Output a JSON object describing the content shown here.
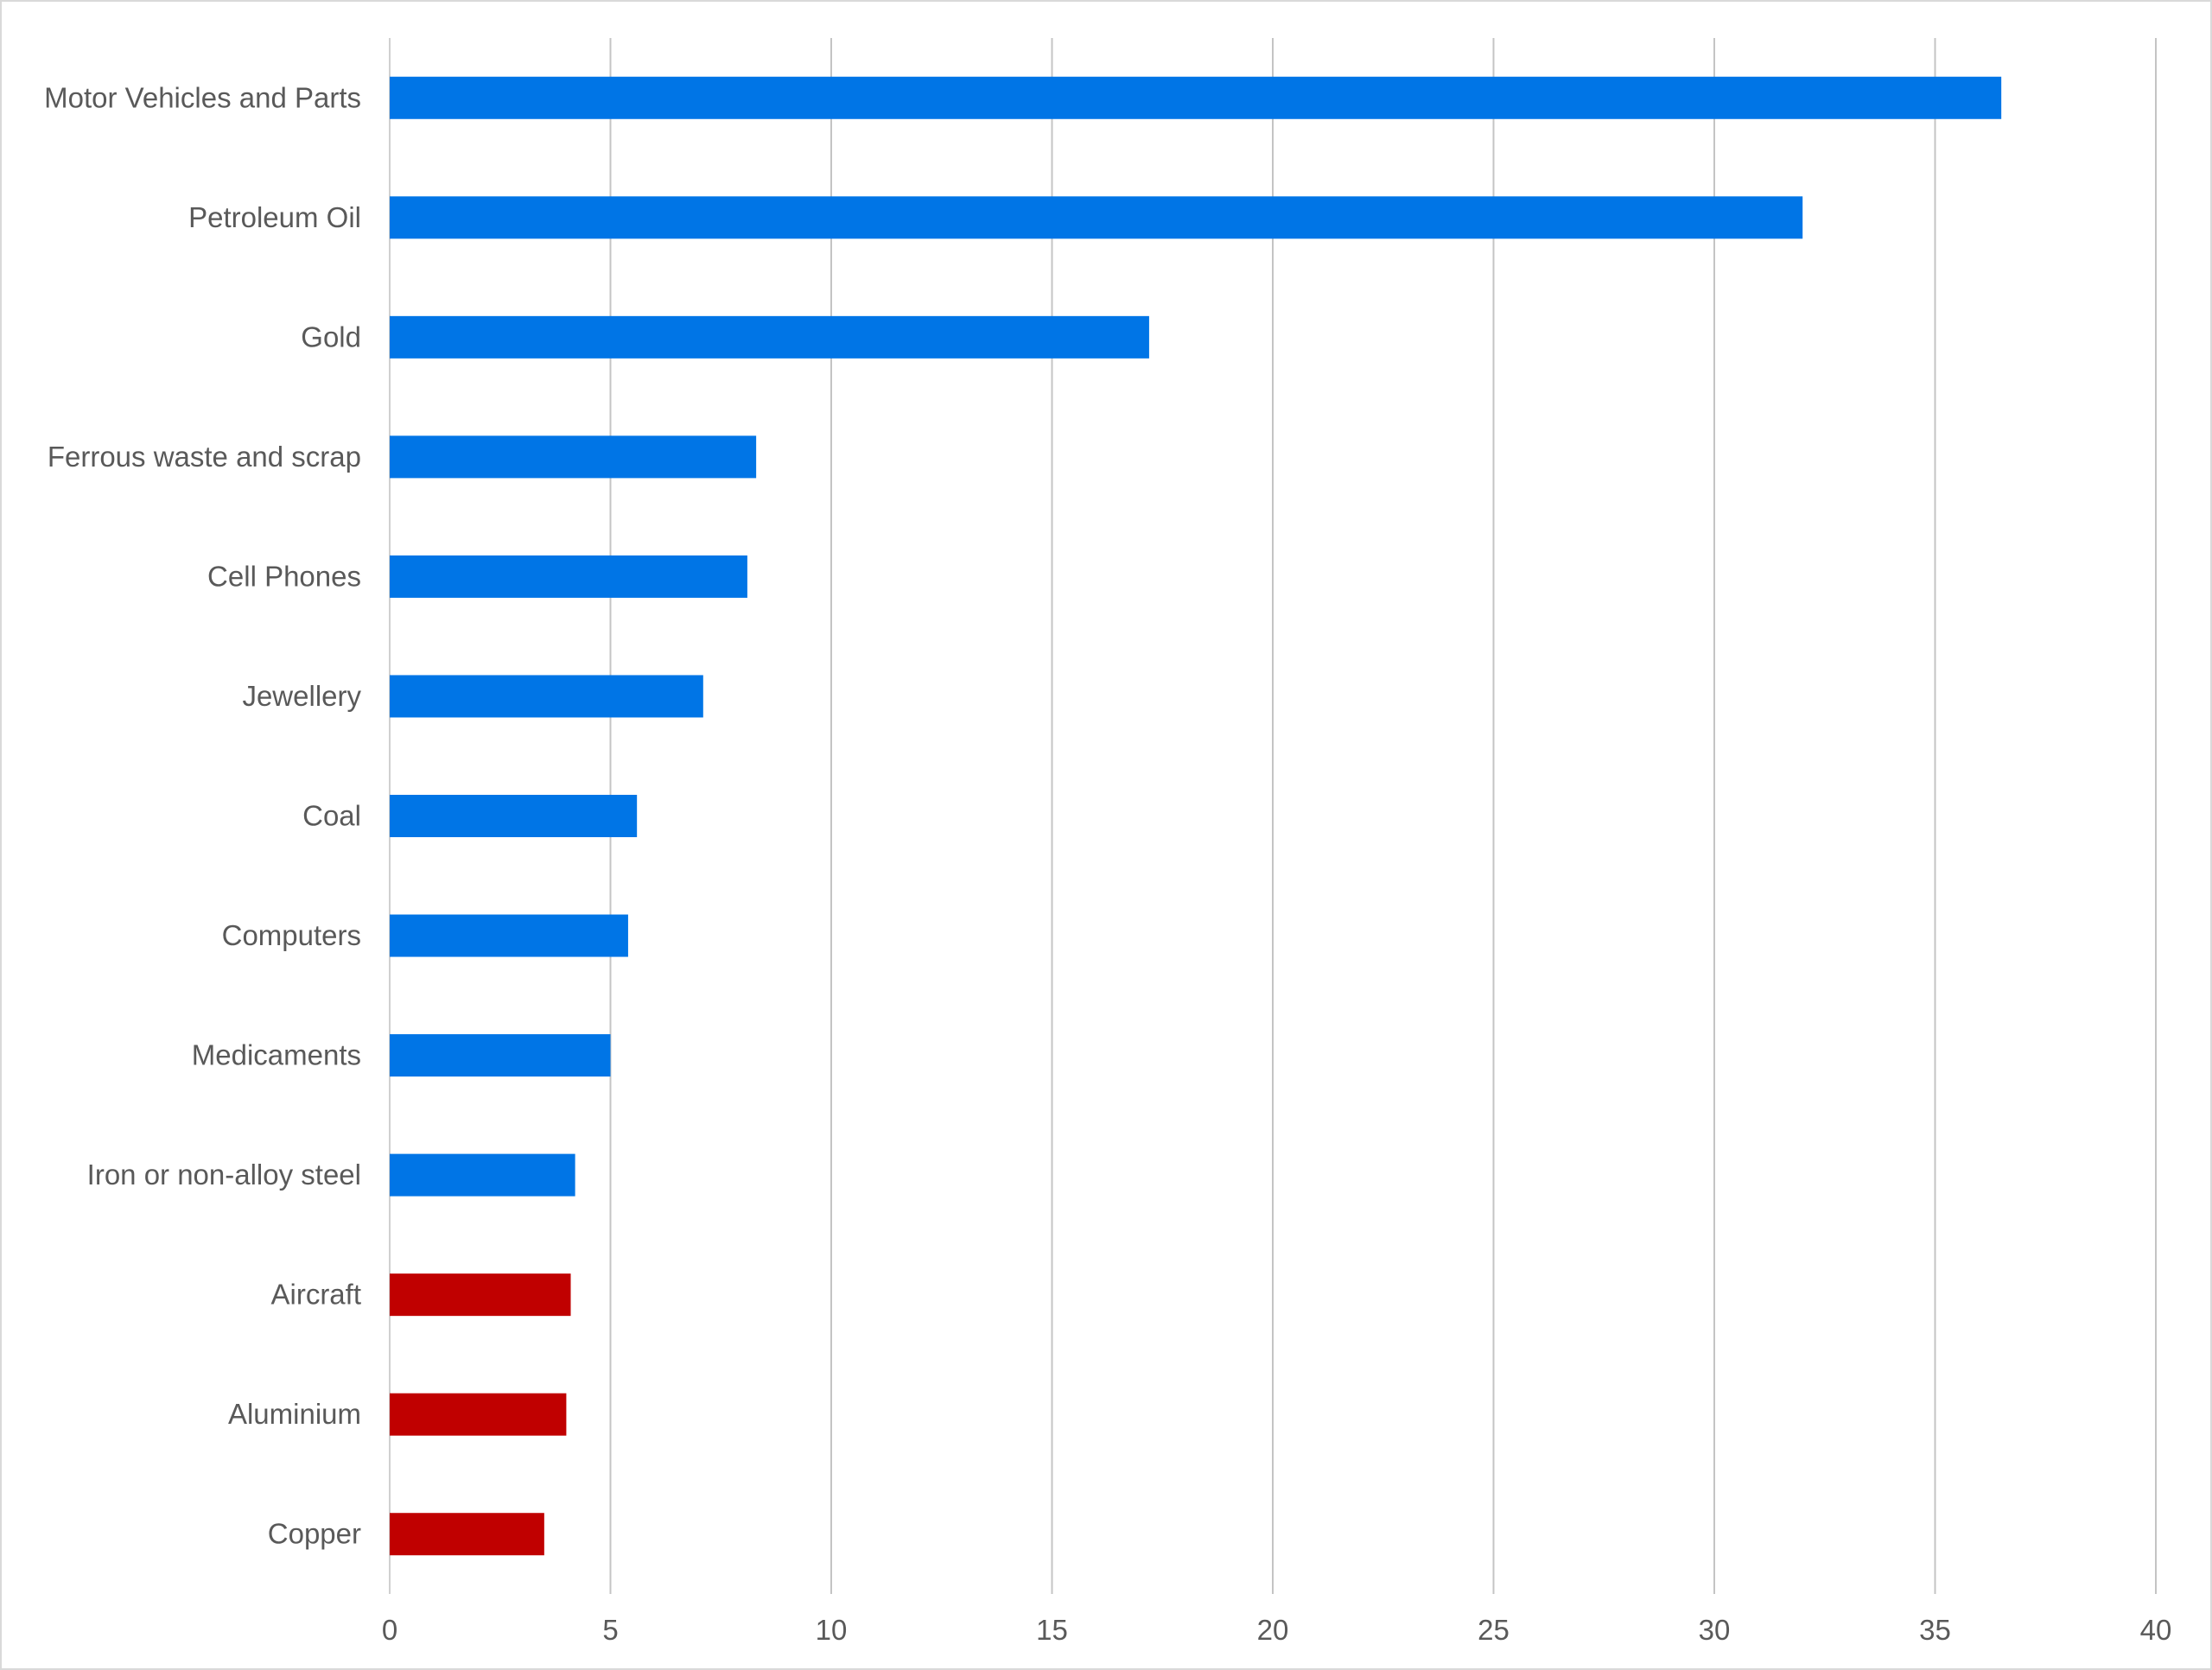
{
  "chart_data": {
    "type": "bar",
    "orientation": "horizontal",
    "title": "",
    "xlabel": "",
    "ylabel": "",
    "xlim": [
      0,
      40
    ],
    "xticks": [
      0,
      5,
      10,
      15,
      20,
      25,
      30,
      35,
      40
    ],
    "grid": true,
    "categories": [
      "Motor Vehicles and Parts",
      "Petroleum Oil",
      "Gold",
      "Ferrous waste and scrap",
      "Cell Phones",
      "Jewellery",
      "Coal",
      "Computers",
      "Medicaments",
      "Iron or non-alloy steel",
      "Aircraft",
      "Aluminium",
      "Copper"
    ],
    "values": [
      36.5,
      32.0,
      17.2,
      8.3,
      8.1,
      7.1,
      5.6,
      5.4,
      5.0,
      4.2,
      4.1,
      4.0,
      3.5
    ],
    "bar_colors": [
      "#0075E6",
      "#0075E6",
      "#0075E6",
      "#0075E6",
      "#0075E6",
      "#0075E6",
      "#0075E6",
      "#0075E6",
      "#0075E6",
      "#0075E6",
      "#C00000",
      "#C00000",
      "#C00000"
    ]
  }
}
